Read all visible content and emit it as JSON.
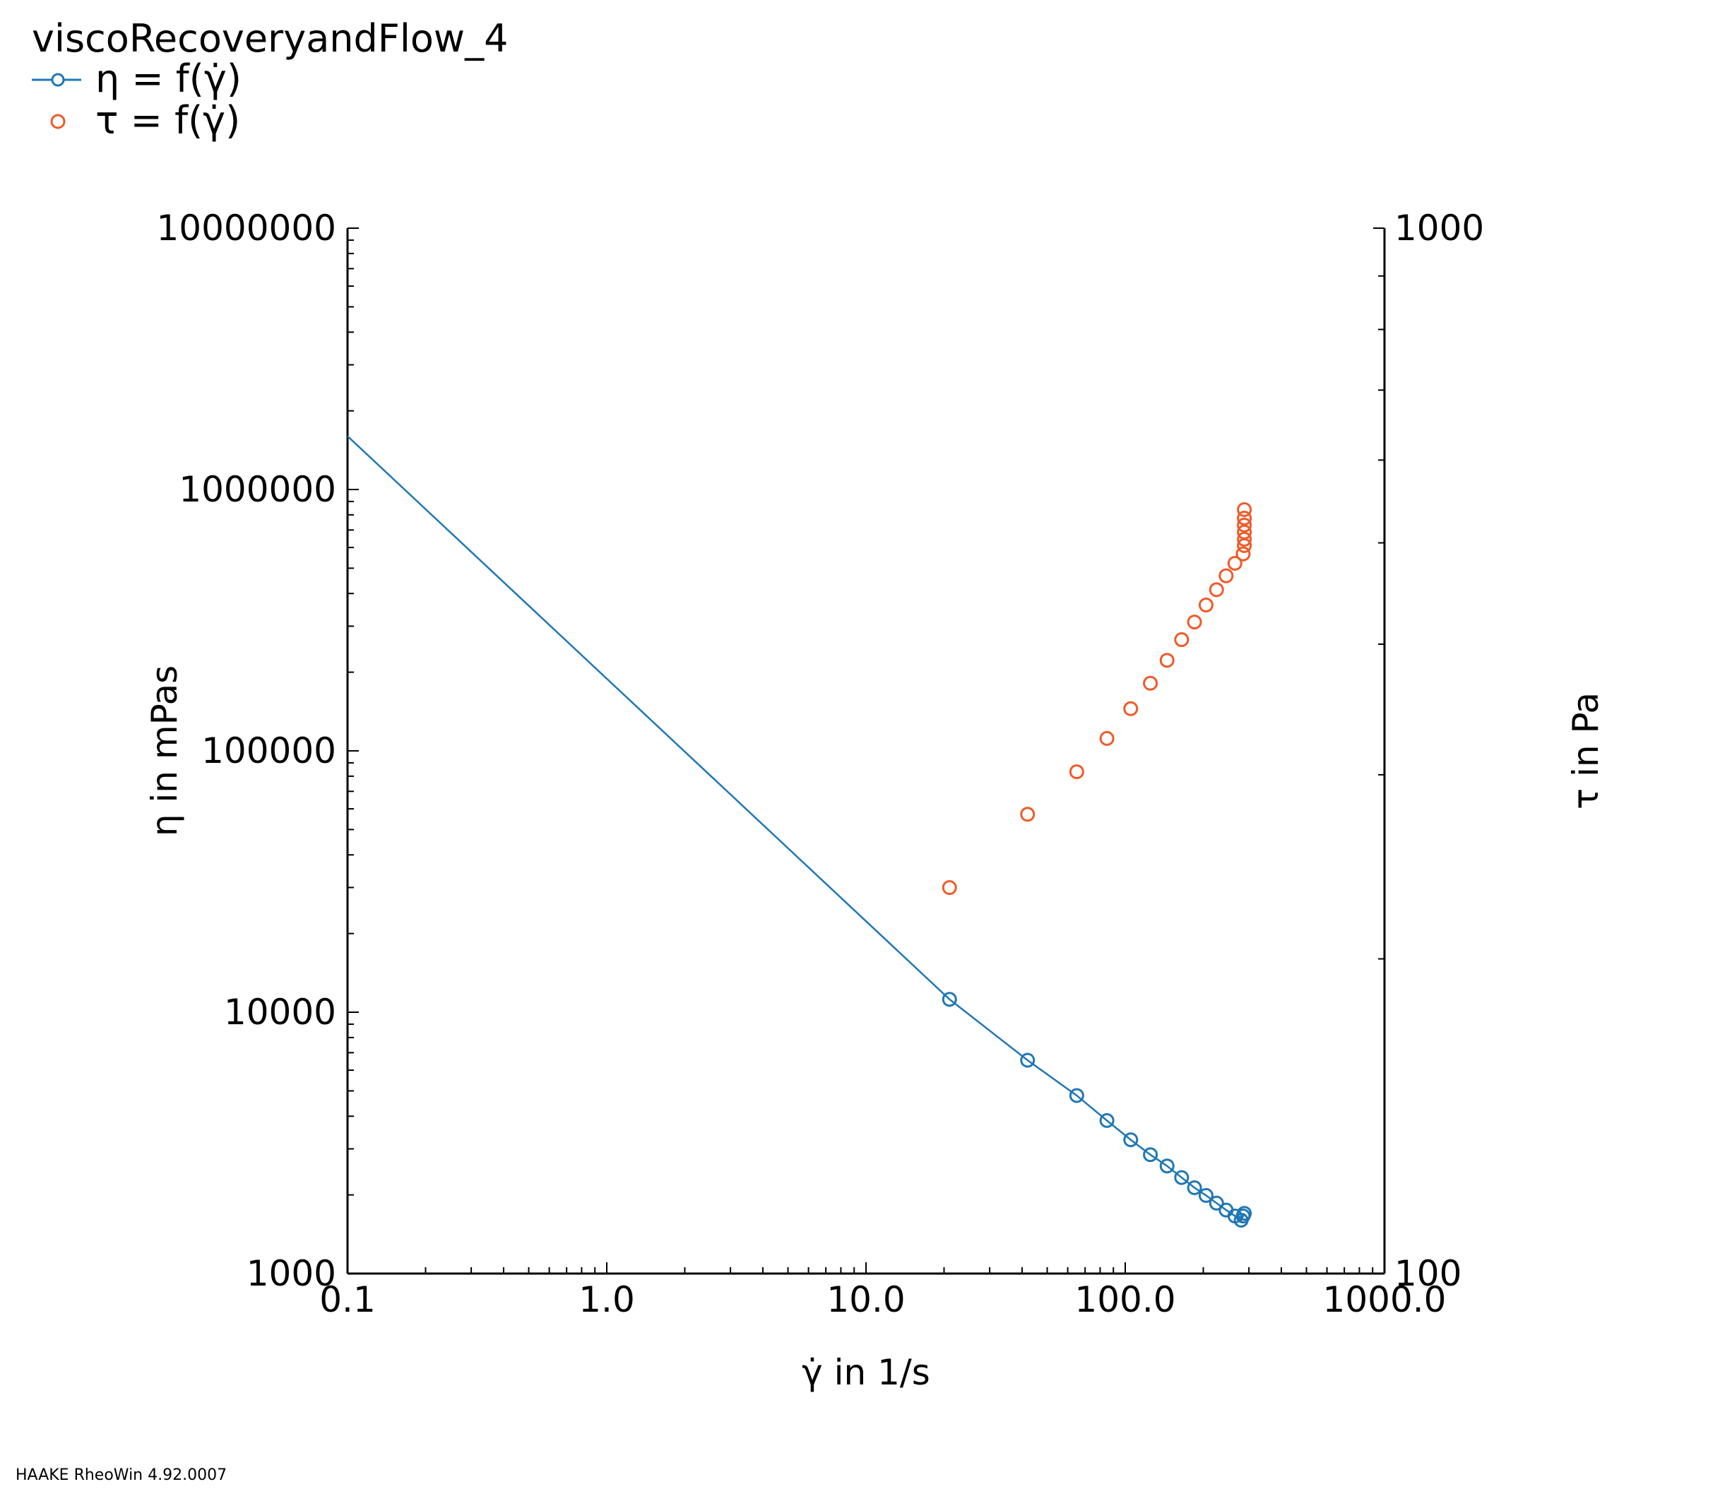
{
  "chart_data": {
    "type": "scatter",
    "title": "viscoRecoveryandFlow_4",
    "xlabel": "γ̇ in 1/s",
    "ylabel": "η in mPas",
    "y2label": "τ in Pa",
    "xscale": "log",
    "yscale": "log",
    "y2scale": "log",
    "xlim": [
      0.1,
      1000
    ],
    "ylim": [
      1000,
      10000000
    ],
    "y2lim": [
      100,
      1000
    ],
    "x_ticks": [
      "0.1",
      "1.0",
      "10.0",
      "100.0",
      "1000.0"
    ],
    "y_ticks": [
      "1000",
      "10000",
      "100000",
      "1000000",
      "10000000"
    ],
    "y2_ticks": [
      "100",
      "1000"
    ],
    "legend_position": "top-left",
    "grid": false,
    "series": [
      {
        "name": "η = f(γ̇)",
        "axis": "left",
        "color": "#1f77b4",
        "marker": "circle-open",
        "line": true,
        "fit_line": {
          "x": [
            0.1,
            21
          ],
          "y": [
            1600000,
            11200
          ]
        },
        "x": [
          21,
          42,
          65,
          85,
          105,
          125,
          145,
          165,
          185,
          205,
          225,
          245,
          265,
          280,
          285,
          288
        ],
        "y": [
          11200,
          6550,
          4800,
          3850,
          3250,
          2850,
          2580,
          2330,
          2130,
          1990,
          1860,
          1750,
          1660,
          1600,
          1660,
          1700
        ]
      },
      {
        "name": "τ = f(γ̇)",
        "axis": "right",
        "color": "#f05a28",
        "marker": "circle-open",
        "line": false,
        "x": [
          21,
          42,
          65,
          85,
          105,
          125,
          145,
          165,
          185,
          205,
          225,
          245,
          265,
          285,
          288,
          288,
          288,
          288,
          288,
          288
        ],
        "y": [
          234,
          275,
          302,
          325,
          347,
          367,
          386,
          404,
          420,
          436,
          451,
          465,
          478,
          488,
          497,
          504,
          512,
          520,
          528,
          538
        ]
      }
    ]
  },
  "footer": "HAAKE RheoWin 4.92.0007"
}
